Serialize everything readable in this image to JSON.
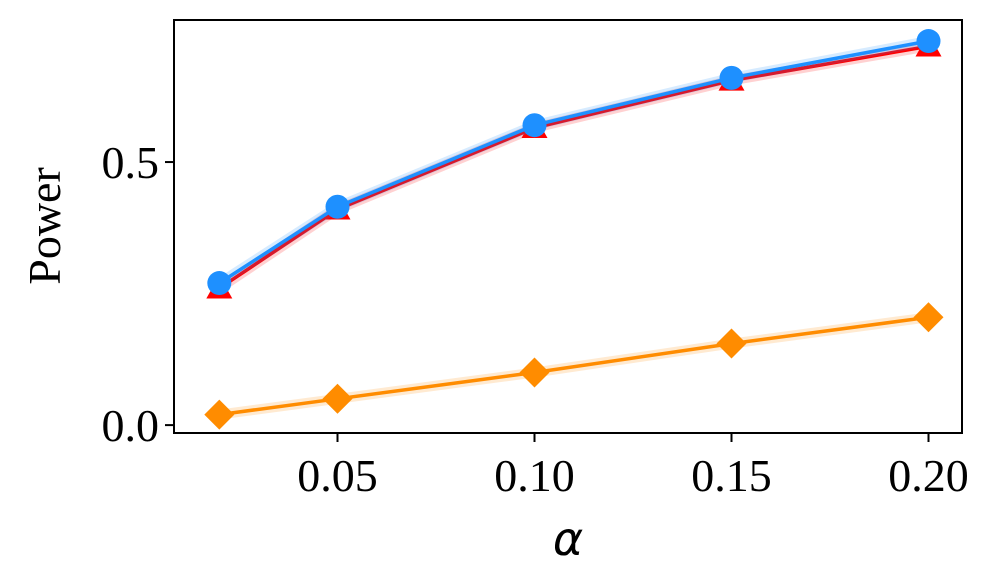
{
  "chart_data": {
    "type": "line",
    "title": "",
    "xlabel": "α",
    "ylabel": "Power",
    "xlim": [
      0.0085,
      0.2085
    ],
    "ylim": [
      -0.015,
      0.77
    ],
    "x_ticks": [
      "0.05",
      "0.10",
      "0.15",
      "0.20"
    ],
    "y_ticks": [
      "0.0",
      "0.5"
    ],
    "grid": false,
    "legend": "none",
    "x": [
      0.02,
      0.05,
      0.1,
      0.15,
      0.2
    ],
    "series": [
      {
        "color": "#ff0000",
        "marker": "triangle",
        "values": [
          0.26,
          0.41,
          0.565,
          0.655,
          0.72
        ]
      },
      {
        "color": "#1e90ff",
        "marker": "circle",
        "values": [
          0.27,
          0.415,
          0.57,
          0.66,
          0.73
        ]
      },
      {
        "color": "#ff8c00",
        "marker": "diamond",
        "values": [
          0.02,
          0.05,
          0.1,
          0.155,
          0.205
        ]
      }
    ]
  }
}
